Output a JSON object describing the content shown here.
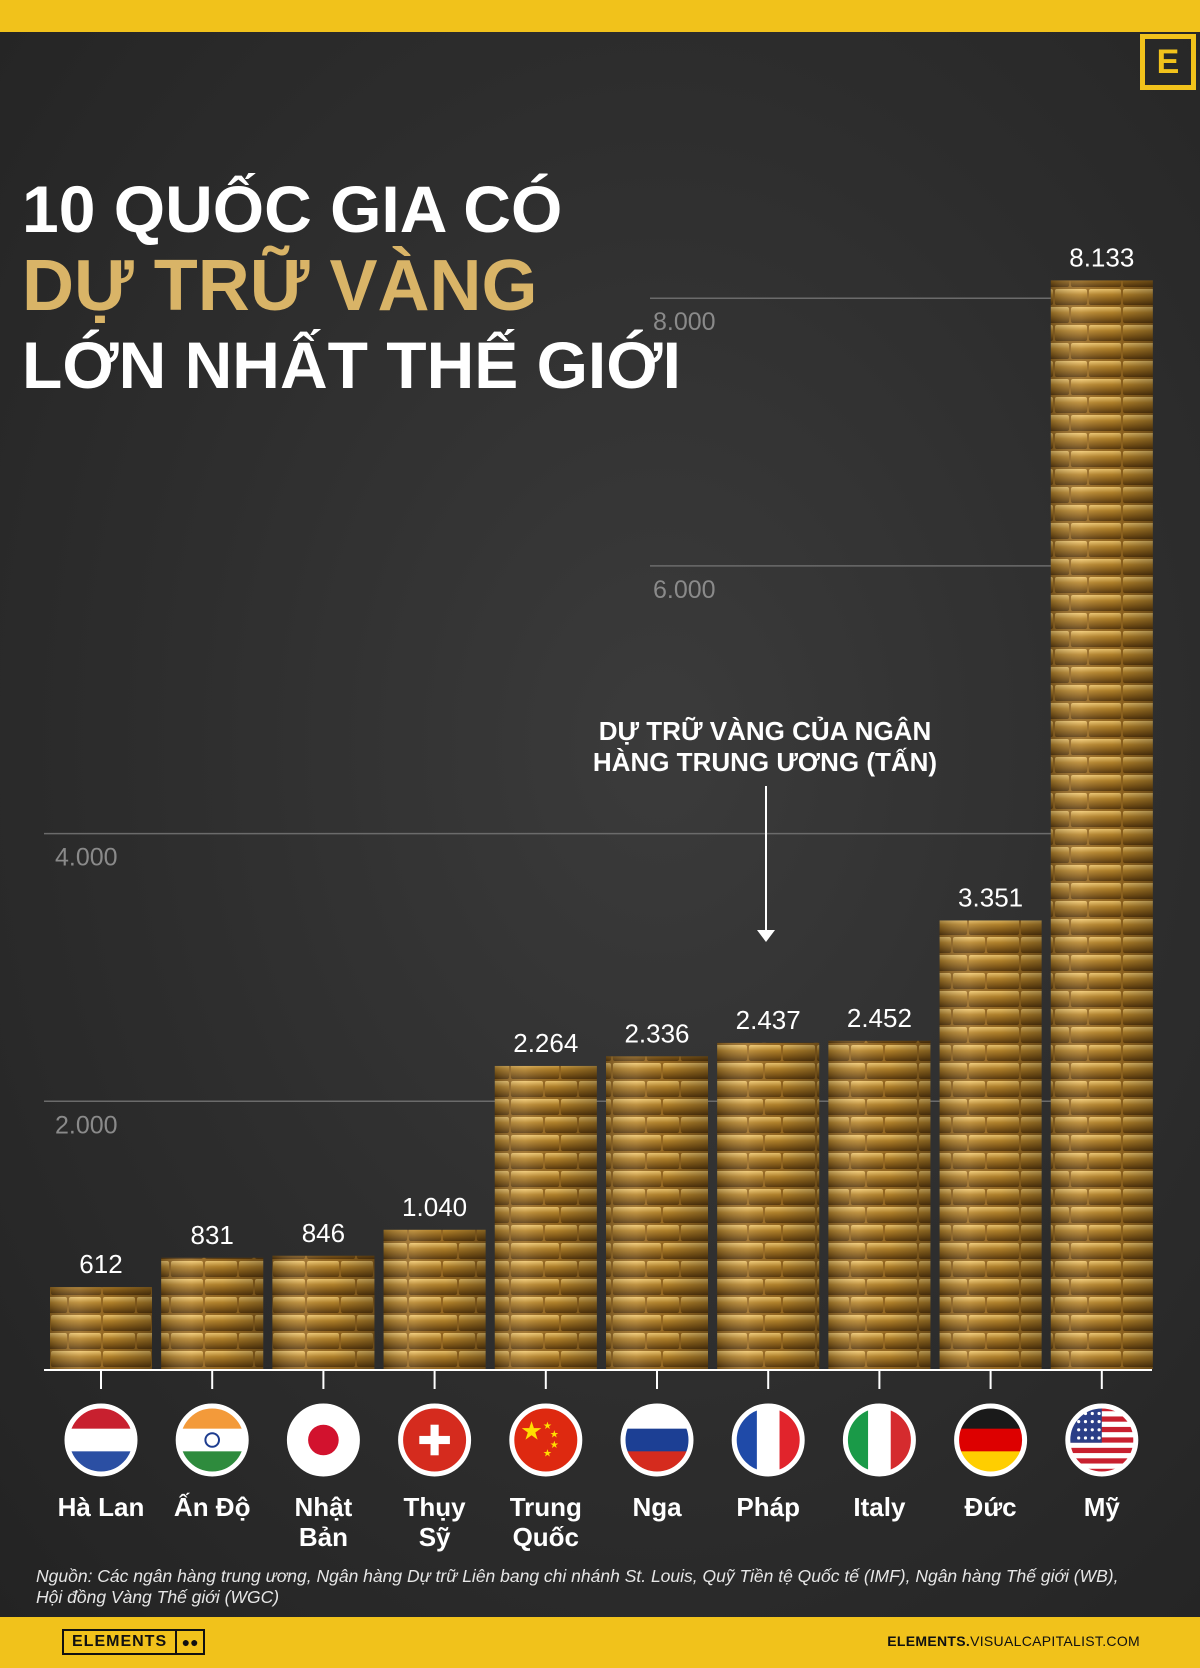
{
  "title": {
    "line1": "10 QUỐC GIA CÓ",
    "line2": "DỰ TRỮ VÀNG",
    "line3": "LỚN NHẤT THẾ GIỚI"
  },
  "annotation": "DỰ TRỮ VÀNG CỦA NGÂN HÀNG TRUNG ƯƠNG (TẤN)",
  "source": "Nguồn: Các ngân hàng trung ương, Ngân hàng Dự trữ Liên bang chi nhánh St. Louis, Quỹ Tiền tệ Quốc tế (IMF), Ngân hàng Thế giới (WB), Hội đồng Vàng Thế giới (WGC)",
  "footer": {
    "logo_letter": "E",
    "brand_word": "ELEMENTS",
    "site_bold": "ELEMENTS.",
    "site_rest": "VISUALCAPITALIST.COM"
  },
  "colors": {
    "accent": "#f1c21b",
    "title_gold": "#d9b467",
    "background": "#2a2a2a",
    "gold_bar": "#b8862c"
  },
  "chart_data": {
    "type": "bar",
    "categories": [
      "Hà Lan",
      "Ấn Độ",
      "Nhật Bản",
      "Thụy Sỹ",
      "Trung Quốc",
      "Nga",
      "Pháp",
      "Italy",
      "Đức",
      "Mỹ"
    ],
    "category_lines": [
      [
        "Hà Lan"
      ],
      [
        "Ấn Độ"
      ],
      [
        "Nhật",
        "Bản"
      ],
      [
        "Thụy",
        "Sỹ"
      ],
      [
        "Trung",
        "Quốc"
      ],
      [
        "Nga"
      ],
      [
        "Pháp"
      ],
      [
        "Italy"
      ],
      [
        "Đức"
      ],
      [
        "Mỹ"
      ]
    ],
    "values": [
      612,
      831,
      846,
      1040,
      2264,
      2336,
      2437,
      2452,
      3351,
      8133
    ],
    "value_labels": [
      "612",
      "831",
      "846",
      "1.040",
      "2.264",
      "2.336",
      "2.437",
      "2.452",
      "3.351",
      "8.133"
    ],
    "flags": [
      "netherlands-flag",
      "india-flag",
      "japan-flag",
      "switzerland-flag",
      "china-flag",
      "russia-flag",
      "france-flag",
      "italy-flag",
      "germany-flag",
      "usa-flag"
    ],
    "gridlines": [
      2000,
      4000,
      6000,
      8000
    ],
    "gridline_labels": [
      "2.000",
      "4.000",
      "6.000",
      "8.000"
    ],
    "ylim": [
      0,
      8133
    ],
    "ylabel": "DỰ TRỮ VÀNG CỦA NGÂN HÀNG TRUNG ƯƠNG (TẤN)",
    "grid": true,
    "legend": "none"
  }
}
